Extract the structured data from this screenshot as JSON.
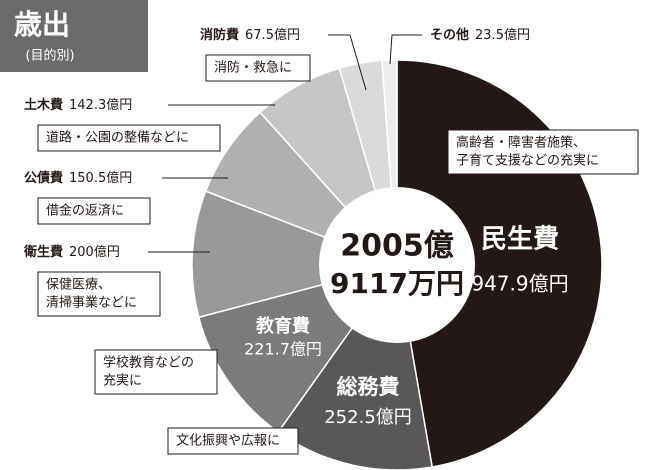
{
  "chart_data": {
    "type": "donut",
    "title": "歳出",
    "subtitle": "(目的別)",
    "center_label": [
      "2005億",
      "9117万円"
    ],
    "categories": [
      "民生費",
      "総務費",
      "教育費",
      "衛生費",
      "公債費",
      "土木費",
      "消防費",
      "その他"
    ],
    "values": [
      947.9,
      252.5,
      221.7,
      200,
      150.5,
      142.3,
      67.5,
      23.5
    ],
    "value_labels": [
      "947.9億円",
      "252.5億円",
      "221.7億円",
      "200億円",
      "150.5億円",
      "142.3億円",
      "67.5億円",
      "23.5億円"
    ],
    "colors": [
      "#231815",
      "#595757",
      "#7b7b7b",
      "#999999",
      "#b0b0b0",
      "#c6c6c6",
      "#dadada",
      "#ececec"
    ],
    "notes": [
      [
        "高齢者・障害者施策、",
        "子育て支援などの充実に"
      ],
      [
        "文化振興や広報に"
      ],
      [
        "学校教育などの",
        "充実に"
      ],
      [
        "保健医療、",
        "清掃事業などに"
      ],
      [
        "借金の返済に"
      ],
      [
        "道路・公園の整備などに"
      ],
      [
        "消防・救急に"
      ],
      null
    ]
  }
}
